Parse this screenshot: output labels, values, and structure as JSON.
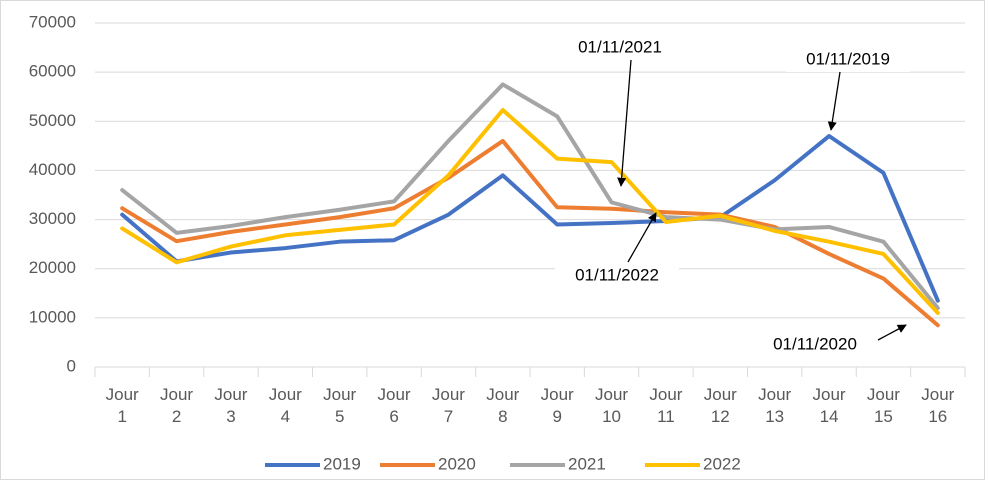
{
  "chart_data": {
    "type": "line",
    "categories": [
      "Jour 1",
      "Jour 2",
      "Jour 3",
      "Jour 4",
      "Jour 5",
      "Jour 6",
      "Jour 7",
      "Jour 8",
      "Jour 9",
      "Jour 10",
      "Jour 11",
      "Jour 12",
      "Jour 13",
      "Jour 14",
      "Jour 15",
      "Jour 16"
    ],
    "series": [
      {
        "name": "2019",
        "color": "#4472c4",
        "values": [
          31000,
          21500,
          23300,
          24200,
          25500,
          25800,
          31000,
          39000,
          29000,
          29300,
          29700,
          30500,
          38000,
          47000,
          39500,
          13500
        ]
      },
      {
        "name": "2020",
        "color": "#ed7d31",
        "values": [
          32300,
          25600,
          27500,
          29000,
          30500,
          32300,
          38500,
          46000,
          32500,
          32200,
          31500,
          31000,
          28500,
          23000,
          18000,
          8500
        ]
      },
      {
        "name": "2021",
        "color": "#a5a5a5",
        "values": [
          36000,
          27300,
          28700,
          30500,
          32000,
          33700,
          46000,
          57500,
          51000,
          33500,
          30500,
          30000,
          28000,
          28500,
          25500,
          12000
        ]
      },
      {
        "name": "2022",
        "color": "#ffc000",
        "values": [
          28200,
          21300,
          24500,
          26800,
          27900,
          29000,
          39000,
          52300,
          42400,
          41700,
          29500,
          30800,
          27700,
          25500,
          23000,
          11000
        ]
      }
    ],
    "ylim": [
      0,
      70000
    ],
    "yticks": [
      0,
      10000,
      20000,
      30000,
      40000,
      50000,
      60000,
      70000
    ],
    "grid": true,
    "legend": "bottom",
    "annotations": [
      "01/11/2021",
      "01/11/2019",
      "01/11/2022",
      "01/11/2020"
    ]
  }
}
